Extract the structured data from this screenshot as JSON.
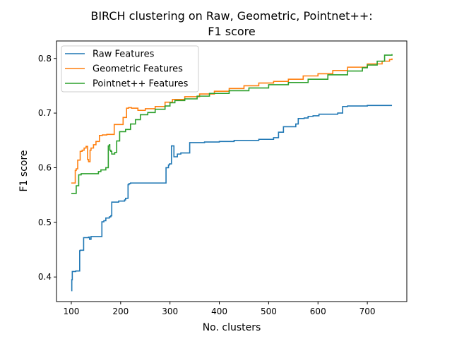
{
  "chart_data": {
    "type": "line",
    "title": [
      "BIRCH clustering on Raw, Geometric, Pointnet++:",
      "F1 score"
    ],
    "xlabel": "No. clusters",
    "ylabel": "F1 score",
    "xlim": [
      70,
      780
    ],
    "ylim": [
      0.355,
      0.832
    ],
    "xticks": [
      100,
      200,
      300,
      400,
      500,
      600,
      700
    ],
    "yticks": [
      0.4,
      0.5,
      0.6,
      0.7,
      0.8
    ],
    "ytick_labels": [
      "0.4",
      "0.5",
      "0.6",
      "0.7",
      "0.8"
    ],
    "grid": false,
    "legend_position": "upper left",
    "series": [
      {
        "name": "Raw Features",
        "color": "#1f77b4",
        "x": [
          100,
          101,
          102,
          108,
          109,
          117,
          118,
          125,
          135,
          137,
          140,
          160,
          162,
          166,
          170,
          177,
          180,
          182,
          187,
          196,
          208,
          210,
          215,
          217,
          220,
          250,
          265,
          288,
          292,
          297,
          299,
          303,
          308,
          315,
          322,
          340,
          370,
          400,
          430,
          480,
          510,
          520,
          530,
          555,
          560,
          572,
          580,
          590,
          602,
          640,
          650,
          660,
          700,
          750
        ],
        "y": [
          0.375,
          0.395,
          0.41,
          0.41,
          0.411,
          0.448,
          0.449,
          0.472,
          0.473,
          0.469,
          0.474,
          0.474,
          0.501,
          0.503,
          0.508,
          0.51,
          0.512,
          0.537,
          0.537,
          0.539,
          0.541,
          0.544,
          0.569,
          0.571,
          0.572,
          0.572,
          0.572,
          0.572,
          0.6,
          0.605,
          0.607,
          0.64,
          0.62,
          0.625,
          0.627,
          0.646,
          0.647,
          0.648,
          0.65,
          0.652,
          0.655,
          0.665,
          0.675,
          0.68,
          0.69,
          0.691,
          0.694,
          0.695,
          0.698,
          0.7,
          0.712,
          0.713,
          0.714,
          0.714
        ]
      },
      {
        "name": "Geometric Features",
        "color": "#ff7f0e",
        "x": [
          100,
          106,
          108,
          110,
          113,
          118,
          122,
          126,
          130,
          133,
          135,
          138,
          140,
          145,
          150,
          157,
          163,
          172,
          187,
          205,
          212,
          216,
          222,
          235,
          250,
          270,
          290,
          305,
          330,
          360,
          390,
          420,
          450,
          480,
          510,
          540,
          570,
          600,
          630,
          660,
          700,
          730,
          745,
          750
        ],
        "y": [
          0.572,
          0.572,
          0.595,
          0.598,
          0.614,
          0.63,
          0.632,
          0.636,
          0.639,
          0.615,
          0.611,
          0.632,
          0.636,
          0.642,
          0.648,
          0.659,
          0.66,
          0.661,
          0.679,
          0.692,
          0.709,
          0.71,
          0.709,
          0.705,
          0.708,
          0.712,
          0.72,
          0.725,
          0.73,
          0.735,
          0.74,
          0.745,
          0.75,
          0.755,
          0.758,
          0.762,
          0.768,
          0.772,
          0.778,
          0.784,
          0.79,
          0.795,
          0.798,
          0.8
        ]
      },
      {
        "name": "Pointnet++ Features",
        "color": "#2ca02c",
        "x": [
          100,
          107,
          110,
          115,
          120,
          150,
          155,
          160,
          170,
          175,
          177,
          178,
          180,
          182,
          188,
          192,
          198,
          210,
          220,
          230,
          240,
          255,
          270,
          290,
          300,
          310,
          330,
          355,
          380,
          420,
          460,
          500,
          540,
          580,
          620,
          660,
          690,
          700,
          720,
          735,
          750
        ],
        "y": [
          0.553,
          0.553,
          0.567,
          0.587,
          0.589,
          0.589,
          0.593,
          0.596,
          0.6,
          0.64,
          0.642,
          0.632,
          0.63,
          0.625,
          0.628,
          0.649,
          0.666,
          0.67,
          0.68,
          0.688,
          0.697,
          0.701,
          0.707,
          0.713,
          0.719,
          0.723,
          0.726,
          0.731,
          0.736,
          0.741,
          0.746,
          0.752,
          0.756,
          0.762,
          0.77,
          0.777,
          0.783,
          0.788,
          0.795,
          0.806,
          0.808
        ]
      }
    ]
  }
}
